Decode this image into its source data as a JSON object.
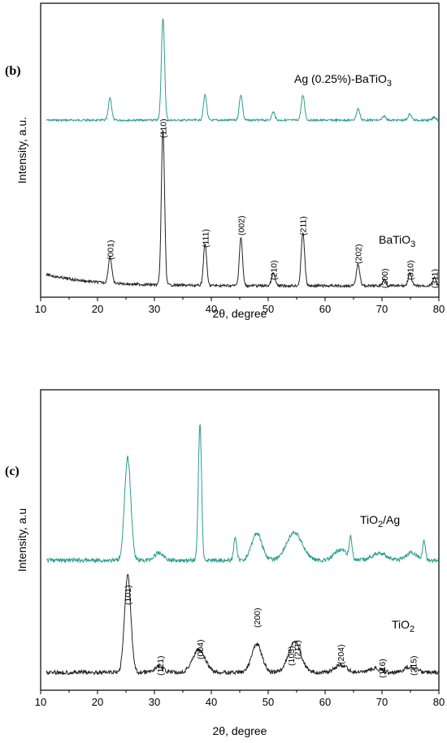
{
  "chart_data": [
    {
      "panel": "(b)",
      "type": "line",
      "xlabel": "2θ, degree",
      "ylabel": "Intensity, a.u.",
      "xlim": [
        10,
        80
      ],
      "xticks": [
        10,
        20,
        30,
        40,
        50,
        60,
        70,
        80
      ],
      "grid": false,
      "series": [
        {
          "name": "Ag (0.25%)-BaTiO",
          "name_sub": "3",
          "color": "#2a9d8f",
          "baseline": 0.0,
          "peaks": [
            [
              22.2,
              0.22,
              0.28
            ],
            [
              31.5,
              1.0,
              0.28
            ],
            [
              38.9,
              0.25,
              0.28
            ],
            [
              45.2,
              0.25,
              0.28
            ],
            [
              50.9,
              0.08,
              0.28
            ],
            [
              56.1,
              0.24,
              0.3
            ],
            [
              65.8,
              0.11,
              0.3
            ],
            [
              70.4,
              0.04,
              0.3
            ],
            [
              74.9,
              0.06,
              0.3
            ],
            [
              79.2,
              0.03,
              0.3
            ]
          ]
        },
        {
          "name": "BaTiO",
          "name_sub": "3",
          "color": "#222222",
          "baseline": 0.0,
          "peaks": [
            [
              22.2,
              0.17,
              0.3
            ],
            [
              31.5,
              1.0,
              0.28
            ],
            [
              38.9,
              0.27,
              0.28
            ],
            [
              45.2,
              0.31,
              0.28
            ],
            [
              50.9,
              0.08,
              0.3
            ],
            [
              56.1,
              0.34,
              0.3
            ],
            [
              65.8,
              0.14,
              0.3
            ],
            [
              70.4,
              0.04,
              0.3
            ],
            [
              74.9,
              0.08,
              0.3
            ],
            [
              79.2,
              0.05,
              0.3
            ]
          ]
        }
      ],
      "annotations": [
        "(001)",
        "(110)",
        "(111)",
        "(002)",
        "(210)",
        "(211)",
        "(202)",
        "(300)",
        "(310)",
        "(311)"
      ],
      "annotation_x": [
        22.2,
        31.5,
        38.9,
        45.2,
        50.9,
        56.1,
        65.8,
        70.4,
        74.9,
        79.2
      ]
    },
    {
      "panel": "(c)",
      "type": "line",
      "xlabel": "2θ, degree",
      "ylabel": "Intensity, a.u",
      "xlim": [
        10,
        80
      ],
      "xticks": [
        10,
        20,
        30,
        40,
        50,
        60,
        70,
        80
      ],
      "grid": false,
      "series": [
        {
          "name": "TiO",
          "name_sub": "2",
          "name_suffix": "/Ag",
          "color": "#2a9d8f",
          "peaks": [
            [
              25.3,
              0.56,
              0.55
            ],
            [
              30.8,
              0.04,
              0.8
            ],
            [
              38.0,
              0.75,
              0.28
            ],
            [
              44.2,
              0.13,
              0.25
            ],
            [
              48.0,
              0.15,
              0.9
            ],
            [
              54.6,
              0.15,
              1.4
            ],
            [
              62.7,
              0.06,
              1.0
            ],
            [
              64.5,
              0.12,
              0.25
            ],
            [
              69.5,
              0.04,
              1.2
            ],
            [
              75.2,
              0.04,
              1.0
            ],
            [
              77.4,
              0.1,
              0.25
            ]
          ]
        },
        {
          "name": "TiO",
          "name_sub": "2",
          "name_suffix": "",
          "color": "#222222",
          "peaks": [
            [
              25.3,
              0.52,
              0.55
            ],
            [
              30.8,
              0.03,
              0.8
            ],
            [
              37.8,
              0.12,
              1.1
            ],
            [
              48.0,
              0.15,
              0.9
            ],
            [
              54.2,
              0.09,
              1.0
            ],
            [
              55.1,
              0.09,
              1.0
            ],
            [
              62.7,
              0.04,
              1.0
            ],
            [
              68.8,
              0.02,
              1.0
            ],
            [
              75.0,
              0.03,
              1.0
            ]
          ]
        }
      ],
      "annotations": [
        "(101)",
        "(121)",
        "(004)",
        "(200)",
        "(105)",
        "(211)",
        "(204)",
        "(116)",
        "(215)"
      ],
      "annotation_x": [
        25.3,
        31.0,
        38.0,
        48.0,
        54.0,
        55.1,
        62.7,
        70.0,
        75.5
      ]
    }
  ]
}
